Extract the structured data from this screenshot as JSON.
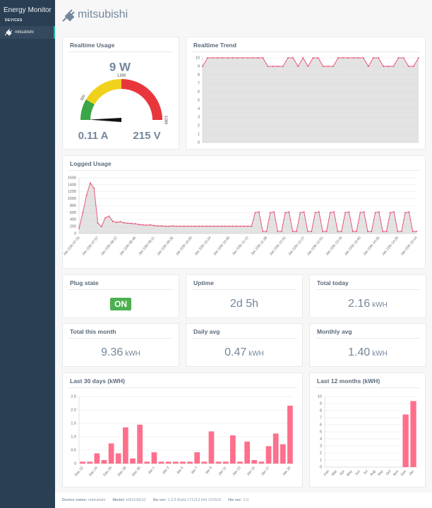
{
  "sidebar": {
    "brand": "Energy Monitor",
    "section": "DEVICES",
    "devices": [
      "mitsubishi"
    ]
  },
  "header": {
    "title": "mitsubishi"
  },
  "realtime_usage": {
    "title": "Realtime Usage",
    "power": {
      "value": 9,
      "label": "9 W"
    },
    "current": "0.11 A",
    "voltage": "215 V",
    "gauge": {
      "range": [
        0,
        3000
      ],
      "bands": [
        {
          "from": 0,
          "to": 500,
          "color": "#3aa648"
        },
        {
          "from": 500,
          "to": 1500,
          "color": "#f0d21c"
        },
        {
          "from": 1500,
          "to": 3000,
          "color": "#e8363c"
        }
      ],
      "ticks": [
        500,
        {
          "value": 1500,
          "label": "1,500"
        },
        {
          "value": 3000,
          "label": "3,000"
        }
      ]
    }
  },
  "chart_data": [
    {
      "type": "line",
      "title": "Realtime Trend",
      "values": [
        9,
        10,
        10,
        10,
        10,
        10,
        10,
        10,
        10,
        10,
        10,
        10,
        10,
        9,
        9,
        9,
        9,
        10,
        10,
        9,
        10,
        9,
        10,
        10,
        9,
        9,
        9,
        10,
        10,
        10,
        10,
        10,
        10,
        9,
        10,
        10,
        9,
        9,
        9,
        10,
        10,
        9,
        9,
        10
      ],
      "color": "#e8577a",
      "ylim": [
        0,
        10
      ],
      "yticks": [
        0,
        1,
        2,
        3,
        4,
        5,
        6,
        7,
        8,
        9,
        10
      ],
      "grid": true
    },
    {
      "type": "line",
      "title": "Logged Usage",
      "categories": [
        "Jan 22th 07:33",
        null,
        null,
        null,
        null,
        "Jan 22th 07:57",
        null,
        null,
        null,
        null,
        "Jan 22th 08:22",
        null,
        null,
        null,
        null,
        "Jan 22th 08:46",
        null,
        null,
        null,
        null,
        "Jan 22th 09:11",
        null,
        null,
        null,
        null,
        "Jan 22th 09:35",
        null,
        null,
        null,
        null,
        "Jan 22th 10:00",
        null,
        null,
        null,
        null,
        "Jan 22th 10:24",
        null,
        null,
        null,
        null,
        "Jan 22th 10:48",
        null,
        null,
        null,
        null,
        "Jan 22th 11:13",
        null,
        null,
        null,
        null,
        "Jan 22th 11:38",
        null,
        null,
        null,
        null,
        "Jan 22th 12:02",
        null,
        null,
        null,
        null,
        "Jan 22th 12:27",
        null,
        null,
        null,
        null,
        "Jan 22th 12:51",
        null,
        null,
        null,
        null,
        "Jan 22th 13:16",
        null,
        null,
        null,
        null,
        "Jan 22th 13:40",
        null,
        null,
        null,
        null,
        "Jan 22th 14:05",
        null,
        null,
        null,
        null,
        "Jan 22th 14:29",
        null,
        null,
        null,
        null,
        "Jan 22th 15:14"
      ],
      "values": [
        150,
        600,
        1100,
        1450,
        1300,
        300,
        200,
        450,
        500,
        350,
        320,
        340,
        310,
        300,
        290,
        280,
        260,
        250,
        240,
        250,
        230,
        220,
        220,
        210,
        210,
        220,
        210,
        210,
        210,
        210,
        210,
        210,
        210,
        210,
        210,
        210,
        210,
        210,
        210,
        210,
        210,
        210,
        210,
        210,
        210,
        210,
        210,
        600,
        620,
        60,
        60,
        600,
        620,
        60,
        60,
        600,
        620,
        60,
        60,
        600,
        620,
        60,
        60,
        600,
        620,
        60,
        60,
        600,
        620,
        60,
        60,
        600,
        620,
        60,
        60,
        600,
        620,
        60,
        60,
        600,
        620,
        60,
        60,
        600,
        620,
        60,
        60,
        600,
        620,
        60,
        60
      ],
      "color": "#e8577a",
      "ylim": [
        0,
        1600
      ],
      "yticks": [
        0,
        200,
        400,
        600,
        800,
        1000,
        1200,
        1400,
        1600
      ],
      "grid": true
    },
    {
      "type": "bar",
      "title": "Last 30 days (kWH)",
      "categories": [
        "Dec 22",
        null,
        "Dec 24",
        null,
        "Dec 26",
        null,
        "Dec 28",
        null,
        "Dec 30",
        null,
        "Jan 1",
        null,
        "Jan 3",
        null,
        "Jan 5",
        null,
        "Jan 7",
        null,
        "Jan 9",
        null,
        "Jan 11",
        null,
        "Jan 13",
        null,
        "Jan 15",
        null,
        "Jan 17",
        null,
        null,
        "Jan 20"
      ],
      "values": [
        0.07,
        0.07,
        0.38,
        0.13,
        0.75,
        0.38,
        1.35,
        0.19,
        1.45,
        0.07,
        0.42,
        0.07,
        0.07,
        0.07,
        0.07,
        0.07,
        0.42,
        0.07,
        1.2,
        0.07,
        0.07,
        1.05,
        0.07,
        0.82,
        0.13,
        0.07,
        0.65,
        1.12,
        0.72,
        2.16
      ],
      "color": "#fe6f8c",
      "ylim": [
        0,
        2.5
      ],
      "yticks": [
        0,
        0.5,
        {
          "value": 1,
          "label": "1.0"
        },
        1.5,
        {
          "value": 2,
          "label": "2.0"
        },
        2.5
      ],
      "grid": true
    },
    {
      "type": "bar",
      "title": "Last 12 months (kWH)",
      "categories": [
        "Feb",
        "Mar",
        "Apr",
        "May",
        "Jun",
        "Jul",
        "Aug",
        "Sep",
        "Oct",
        "Nov",
        "Dec",
        "Jan"
      ],
      "values": [
        0,
        0,
        0,
        0,
        0,
        0,
        0,
        0,
        0,
        0,
        7.45,
        9.36
      ],
      "color": "#fe6f8c",
      "ylim": [
        0,
        10
      ],
      "yticks": [
        0,
        1,
        2,
        3,
        4,
        5,
        6,
        7,
        8,
        9,
        10
      ],
      "grid": true
    }
  ],
  "stats": [
    {
      "title": "Plug state",
      "value": "ON"
    },
    {
      "title": "Uptime",
      "value": "2d 5h"
    },
    {
      "title": "Total today",
      "value": "2.16",
      "unit": "kWH"
    },
    {
      "title": "Total this month",
      "value": "9.36",
      "unit": "kWH"
    },
    {
      "title": "Daily avg",
      "value": "0.47",
      "unit": "kWH"
    },
    {
      "title": "Monthly avg",
      "value": "1.40",
      "unit": "kWH"
    }
  ],
  "footer": [
    {
      "label": "Device name:",
      "value": "mitsubishi"
    },
    {
      "label": "Model:",
      "value": "HS110(EU)"
    },
    {
      "label": "Sw ver:",
      "value": "1.2.5 Build 171213 Rel 101523"
    },
    {
      "label": "Hw ver:",
      "value": "1.0"
    }
  ]
}
